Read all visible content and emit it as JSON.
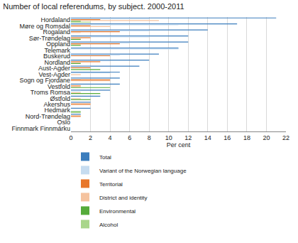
{
  "chart_data": {
    "type": "bar",
    "orientation": "horizontal",
    "title": "Number of local referendums, by subject. 2000-2011",
    "x_label": "Per cent",
    "categories": [
      "Hordaland",
      "Møre og Romsdal",
      "Rogaland",
      "Sør-Trøndelag",
      "Oppland",
      "Telemark",
      "Buskerud",
      "Nordland",
      "Aust-Agder",
      "Vest-Agder",
      "Sogn og Fjordane",
      "Vestfold",
      "Troms Romsa",
      "Østfold",
      "Akershus",
      "Hedmark",
      "Nord-Trøndelag",
      "Oslo",
      "Finnmark Finnmárku"
    ],
    "series": [
      {
        "name": "Total",
        "color": "#3b7dbd",
        "values": [
          21,
          17,
          14,
          12,
          12,
          11,
          9,
          8,
          7,
          5,
          5,
          5,
          4,
          3,
          2,
          2,
          1,
          0,
          0
        ]
      },
      {
        "name": "Variant of the Norwegian language",
        "color": "#c6dcf0",
        "values": [
          8,
          11,
          8,
          8,
          6,
          11,
          5,
          4,
          2,
          4,
          1,
          0,
          1,
          0,
          0,
          0,
          0,
          0,
          0
        ]
      },
      {
        "name": "Territorial",
        "color": "#e8772a",
        "values": [
          3,
          2,
          5,
          2,
          5,
          0,
          4,
          3,
          2,
          0,
          4,
          1,
          0,
          0,
          2,
          0,
          1,
          0,
          0
        ]
      },
      {
        "name": "District and identity",
        "color": "#f5c39f",
        "values": [
          9,
          4,
          1,
          1,
          1,
          0,
          0,
          1,
          0,
          1,
          4,
          1,
          1,
          1,
          2,
          0,
          1,
          0,
          0
        ]
      },
      {
        "name": "Environmental",
        "color": "#55ab3a",
        "values": [
          1,
          0,
          0,
          1,
          1,
          0,
          0,
          1,
          3,
          0,
          0,
          4,
          3,
          2,
          0,
          1,
          0,
          0,
          0
        ]
      },
      {
        "name": "Alcohol",
        "color": "#a9d68b",
        "values": [
          2,
          0,
          0,
          0,
          0,
          0,
          0,
          0,
          0,
          0,
          0,
          0,
          0,
          0,
          0,
          1,
          0,
          0,
          0
        ]
      }
    ],
    "xlim": [
      0,
      22
    ],
    "xticks": [
      0,
      2,
      4,
      6,
      8,
      10,
      12,
      14,
      16,
      18,
      20,
      22
    ],
    "grid": true,
    "legend": "bottom"
  }
}
